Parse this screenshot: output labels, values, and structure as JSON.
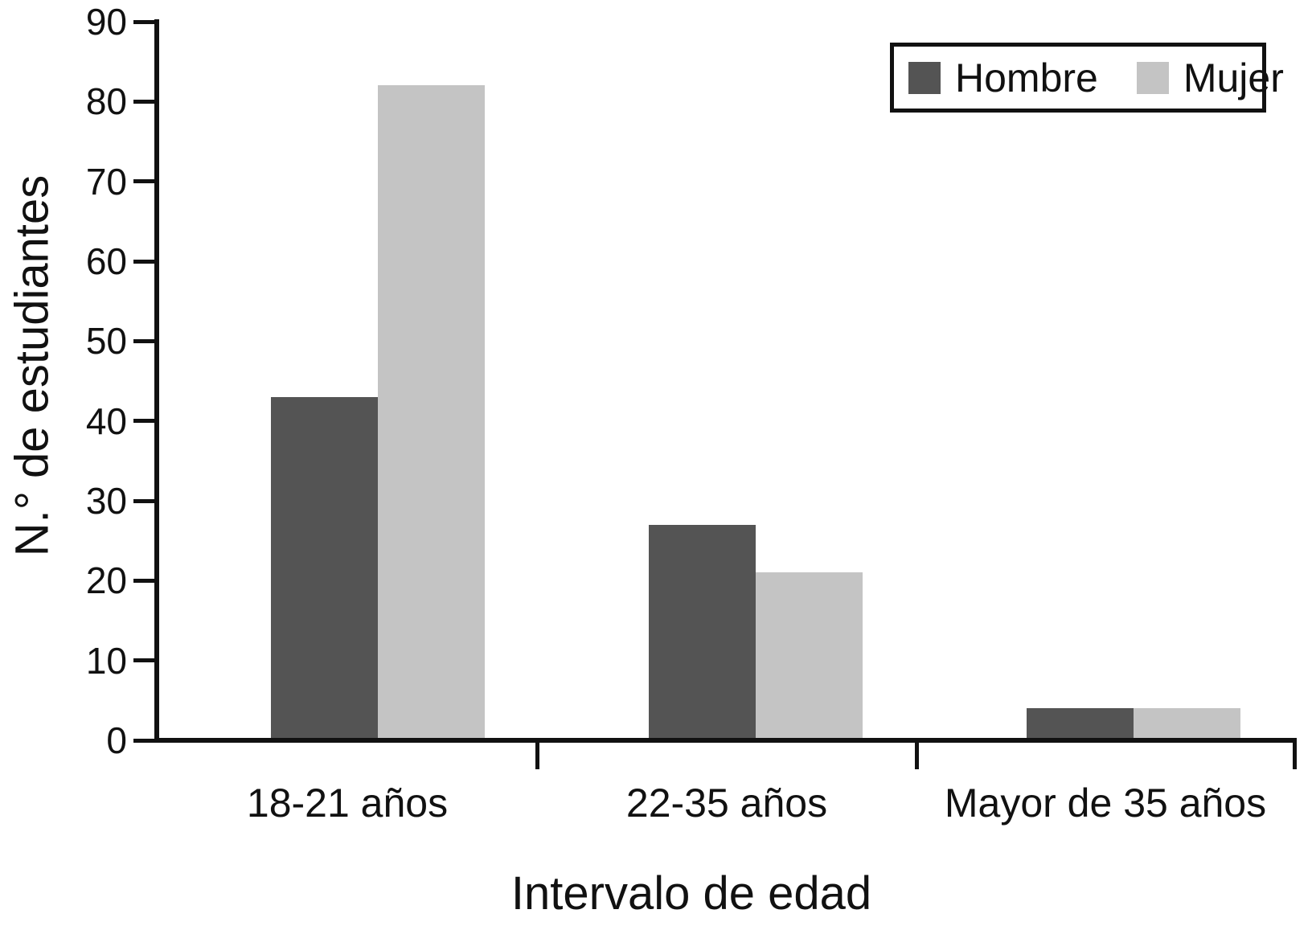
{
  "figure": {
    "background": "#ffffff",
    "text_color": "#111111"
  },
  "chart_data": {
    "type": "bar",
    "bar_grouping": "grouped",
    "title": "",
    "categories": [
      "18-21 años",
      "22-35 años",
      "Mayor de 35 años"
    ],
    "series": [
      {
        "name": "Hombre",
        "color": "#545454",
        "values": [
          43,
          27,
          4
        ]
      },
      {
        "name": "Mujer",
        "color": "#c4c4c4",
        "values": [
          82,
          21,
          4
        ]
      }
    ],
    "xlabel": "Intervalo de edad",
    "ylabel": "N.° de estudiantes",
    "ylim": [
      0,
      90
    ],
    "yticks": [
      0,
      10,
      20,
      30,
      40,
      50,
      60,
      70,
      80,
      90
    ],
    "grid": false,
    "legend_position": "top-right"
  }
}
